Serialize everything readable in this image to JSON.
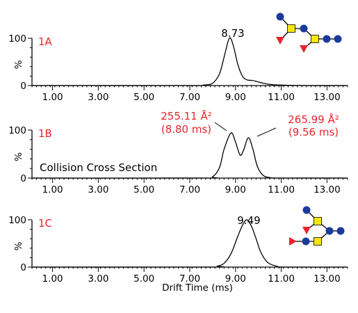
{
  "colors": {
    "panel_label": "#e8242c",
    "trace": "#000000",
    "glycan_blue": "#1a3a9c",
    "glycan_yellow": "#f5e60a",
    "glycan_red": "#e8242c"
  },
  "xlabel": "Drift Time (ms)",
  "ylabel": "%",
  "x_tick_labels": [
    "1.00",
    "3.00",
    "5.00",
    "7.00",
    "9.00",
    "11.00",
    "13.00"
  ],
  "y_tick_labels": [
    "0",
    "100"
  ],
  "annotation": "Collision Cross Section",
  "chart_data": [
    {
      "type": "line",
      "panel": "1A",
      "xlim": [
        0.1,
        13.9
      ],
      "ylim": [
        0,
        100
      ],
      "peak_label": "8.73",
      "series": [
        {
          "x": [
            0.1,
            7.0,
            7.6,
            8.0,
            8.3,
            8.5,
            8.73,
            8.9,
            9.1,
            9.3,
            9.5,
            9.7,
            9.9,
            10.2,
            10.6,
            11.0,
            12.0,
            13.9
          ],
          "y": [
            0,
            0,
            1,
            5,
            25,
            60,
            100,
            85,
            45,
            20,
            12,
            11,
            9,
            5,
            2,
            1,
            0,
            0
          ]
        }
      ],
      "glycan_icon": "asialo-biantennary-glycan-icon-a"
    },
    {
      "type": "line",
      "panel": "1B",
      "xlim": [
        0.1,
        13.9
      ],
      "ylim": [
        0,
        100
      ],
      "peaks": [
        {
          "ccs": "255.11 Å²",
          "time": "(8.80 ms)"
        },
        {
          "ccs": "265.99 Å²",
          "time": "(9.56 ms)"
        }
      ],
      "series": [
        {
          "x": [
            0.1,
            7.5,
            8.0,
            8.3,
            8.5,
            8.8,
            9.0,
            9.2,
            9.35,
            9.56,
            9.75,
            9.95,
            10.2,
            10.5,
            11.0,
            13.9
          ],
          "y": [
            0,
            0,
            3,
            22,
            60,
            94,
            75,
            48,
            58,
            84,
            62,
            25,
            6,
            1,
            0,
            0
          ]
        }
      ]
    },
    {
      "type": "line",
      "panel": "1C",
      "xlim": [
        0.1,
        13.9
      ],
      "ylim": [
        0,
        100
      ],
      "peak_label": "9.49",
      "series": [
        {
          "x": [
            0.1,
            7.8,
            8.2,
            8.5,
            8.8,
            9.1,
            9.3,
            9.49,
            9.7,
            9.9,
            10.1,
            10.4,
            10.8,
            11.2,
            13.9
          ],
          "y": [
            0,
            0,
            2,
            8,
            28,
            65,
            88,
            100,
            86,
            60,
            32,
            10,
            2,
            0,
            0
          ]
        }
      ],
      "glycan_icon": "asialo-biantennary-glycan-icon-c"
    }
  ]
}
